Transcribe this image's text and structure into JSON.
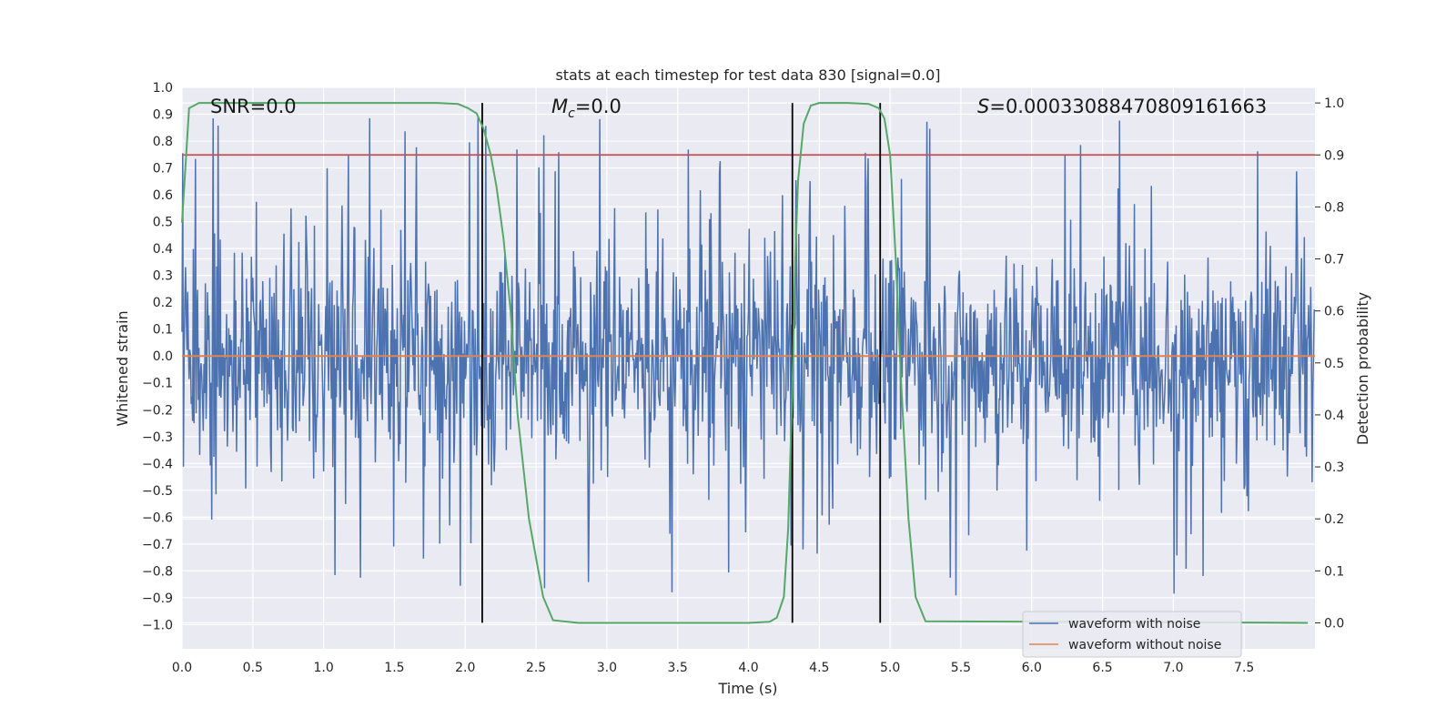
{
  "chart_data": {
    "type": "line",
    "title": "stats at each timestep for test data 830 [signal=0.0]",
    "xlabel": "Time (s)",
    "ylabel": "Whitened strain",
    "y2label": "Detection probability",
    "xlim": [
      0.0,
      8.0
    ],
    "ylim": [
      -1.09,
      1.0
    ],
    "y2lim": [
      -0.05,
      1.03
    ],
    "xticks": [
      "0.0",
      "0.5",
      "1.0",
      "1.5",
      "2.0",
      "2.5",
      "3.0",
      "3.5",
      "4.0",
      "4.5",
      "5.0",
      "5.5",
      "6.0",
      "6.5",
      "7.0",
      "7.5"
    ],
    "xtick_values": [
      0.0,
      0.5,
      1.0,
      1.5,
      2.0,
      2.5,
      3.0,
      3.5,
      4.0,
      4.5,
      5.0,
      5.5,
      6.0,
      6.5,
      7.0,
      7.5
    ],
    "yticks": [
      "1.0",
      "0.9",
      "0.8",
      "0.7",
      "0.6",
      "0.5",
      "0.4",
      "0.3",
      "0.2",
      "0.1",
      "0.0",
      "−0.1",
      "−0.2",
      "−0.3",
      "−0.4",
      "−0.5",
      "−0.6",
      "−0.7",
      "−0.8",
      "−0.9",
      "−1.0"
    ],
    "ytick_values": [
      1.0,
      0.9,
      0.8,
      0.7,
      0.6,
      0.5,
      0.4,
      0.3,
      0.2,
      0.1,
      0.0,
      -0.1,
      -0.2,
      -0.3,
      -0.4,
      -0.5,
      -0.6,
      -0.7,
      -0.8,
      -0.9,
      -1.0
    ],
    "y2ticks": [
      "1.0",
      "0.9",
      "0.8",
      "0.7",
      "0.6",
      "0.5",
      "0.4",
      "0.3",
      "0.2",
      "0.1",
      "0.0"
    ],
    "y2tick_values": [
      1.0,
      0.9,
      0.8,
      0.7,
      0.6,
      0.5,
      0.4,
      0.3,
      0.2,
      0.1,
      0.0
    ],
    "annotations": {
      "snr": "SNR=0.0",
      "mc_symbol": "M",
      "mc_subscript": "c",
      "mc_value": "=0.0",
      "s_symbol": "S",
      "s_value": "=0.00033088470809161663"
    },
    "series": [
      {
        "name": "waveform with noise",
        "color": "#4c72b0",
        "description": "dense noise, roughly ±0.35 core with spikes to about ±0.9",
        "noise_seed": 830,
        "sample_count": 1600
      },
      {
        "name": "waveform without noise",
        "color": "#dd8452",
        "values_constant": 0.0
      },
      {
        "name": "detection probability",
        "axis": "right",
        "color": "#55a868",
        "x": [
          0.0,
          0.05,
          0.12,
          0.3,
          0.8,
          1.3,
          1.8,
          1.95,
          2.02,
          2.08,
          2.13,
          2.18,
          2.22,
          2.27,
          2.32,
          2.37,
          2.45,
          2.55,
          2.62,
          2.8,
          3.5,
          4.0,
          4.15,
          4.2,
          4.25,
          4.28,
          4.31,
          4.33,
          4.35,
          4.39,
          4.44,
          4.5,
          4.7,
          4.85,
          4.92,
          4.96,
          5.0,
          5.04,
          5.08,
          5.13,
          5.18,
          5.25,
          7.95
        ],
        "values": [
          0.77,
          0.99,
          1.0,
          1.0,
          1.0,
          1.0,
          1.0,
          0.998,
          0.99,
          0.98,
          0.95,
          0.9,
          0.84,
          0.74,
          0.6,
          0.4,
          0.2,
          0.05,
          0.005,
          0.0,
          0.0,
          0.0,
          0.002,
          0.01,
          0.05,
          0.18,
          0.45,
          0.7,
          0.85,
          0.96,
          0.995,
          1.0,
          1.0,
          0.998,
          0.99,
          0.97,
          0.9,
          0.7,
          0.45,
          0.2,
          0.05,
          0.003,
          0.0
        ]
      }
    ],
    "threshold_line": {
      "axis": "right",
      "value": 0.9,
      "color": "#c44e52"
    },
    "vertical_lines_x": [
      2.12,
      4.31,
      4.93
    ],
    "vertical_line_color": "#000000",
    "legend": {
      "position": "lower-right",
      "entries": [
        {
          "label": "waveform with noise",
          "color": "#4c72b0"
        },
        {
          "label": "waveform without noise",
          "color": "#dd8452"
        }
      ]
    },
    "colors": {
      "plot_background": "#eaeaf2",
      "grid": "#ffffff",
      "text": "#262626"
    }
  }
}
